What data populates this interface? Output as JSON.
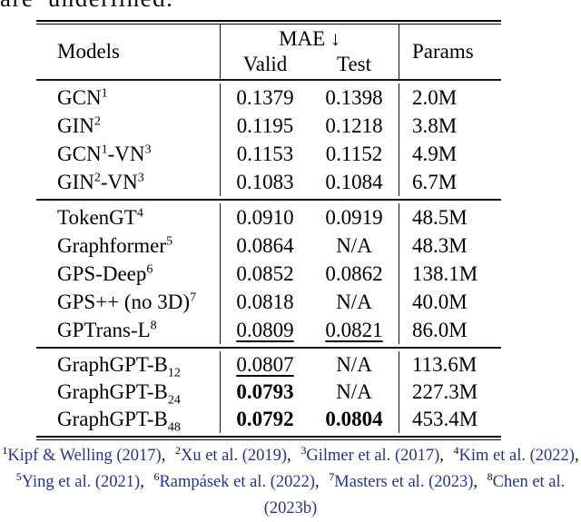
{
  "caption_fragment": "are underlined.",
  "colors": {
    "citation_link": "#27338E",
    "text": "#000000",
    "background": "#FFFFFF"
  },
  "table": {
    "header": {
      "models": "Models",
      "mae": "MAE",
      "mae_arrow": "↓",
      "valid": "Valid",
      "test": "Test",
      "params": "Params"
    },
    "groups": [
      {
        "rows": [
          {
            "b1": "GCN",
            "s1": "1",
            "valid": "0.1379",
            "test": "0.1398",
            "params": "2.0M"
          },
          {
            "b1": "GIN",
            "s1": "2",
            "valid": "0.1195",
            "test": "0.1218",
            "params": "3.8M"
          },
          {
            "b1": "GCN",
            "s1": "1",
            "b2": "-VN",
            "s2": "3",
            "valid": "0.1153",
            "test": "0.1152",
            "params": "4.9M"
          },
          {
            "b1": "GIN",
            "s1": "2",
            "b2": "-VN",
            "s2": "3",
            "valid": "0.1083",
            "test": "0.1084",
            "params": "6.7M"
          }
        ]
      },
      {
        "rows": [
          {
            "b1": "TokenGT",
            "s1": "4",
            "valid": "0.0910",
            "test": "0.0919",
            "params": "48.5M"
          },
          {
            "b1": "Graphformer",
            "s1": "5",
            "valid": "0.0864",
            "test": "N/A",
            "params": "48.3M"
          },
          {
            "b1": "GPS-Deep",
            "s1": "6",
            "valid": "0.0852",
            "test": "0.0862",
            "params": "138.1M"
          },
          {
            "b1": "GPS++ (no 3D)",
            "s1": "7",
            "valid": "0.0818",
            "test": "N/A",
            "params": "40.0M"
          },
          {
            "b1": "GPTrans-L",
            "s1": "8",
            "valid": "0.0809",
            "test": "0.0821",
            "params": "86.0M"
          }
        ]
      },
      {
        "rows": [
          {
            "b1": "GraphGPT-B",
            "sub1": "12",
            "valid": "0.0807",
            "test": "N/A",
            "params": "113.6M"
          },
          {
            "b1": "GraphGPT-B",
            "sub1": "24",
            "valid": "0.0793",
            "test": "N/A",
            "params": "227.3M"
          },
          {
            "b1": "GraphGPT-B",
            "sub1": "48",
            "valid": "0.0792",
            "test": "0.0804",
            "params": "453.4M"
          }
        ]
      }
    ]
  },
  "footnotes": {
    "line1": [
      {
        "sup": "1",
        "text": "Kipf & Welling (2017)",
        "sep": ","
      },
      {
        "sup": "2",
        "text": "Xu et al. (2019)",
        "sep": ","
      },
      {
        "sup": "3",
        "text": "Gilmer et al. (2017)",
        "sep": ","
      },
      {
        "sup": "4",
        "text": "Kim et al. (2022)",
        "sep": ","
      }
    ],
    "line2": [
      {
        "sup": "5",
        "text": "Ying et al. (2021)",
        "sep": ","
      },
      {
        "sup": "6",
        "text": "Rampásek et al. (2022)",
        "sep": ","
      },
      {
        "sup": "7",
        "text": "Masters et al. (2023)",
        "sep": ","
      },
      {
        "sup": "8",
        "text": "Chen et al.",
        "sep": ""
      }
    ],
    "line3": "(2023b)"
  }
}
